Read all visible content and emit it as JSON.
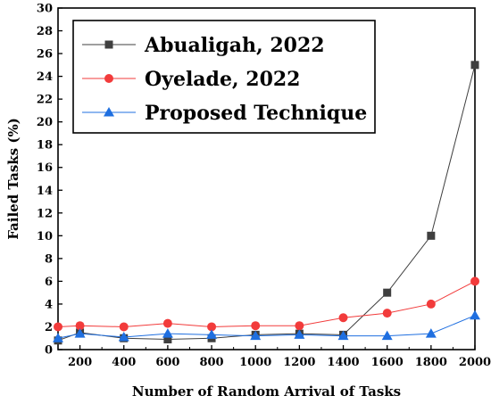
{
  "chart_data": {
    "type": "line",
    "xlabel": "Number of Random Arrival of Tasks",
    "ylabel": "Failed Tasks (%)",
    "xlim": [
      100,
      2000
    ],
    "ylim": [
      0,
      30
    ],
    "x": [
      100,
      200,
      400,
      600,
      800,
      1000,
      1200,
      1400,
      1600,
      1800,
      2000
    ],
    "x_ticks": [
      200,
      400,
      600,
      800,
      1000,
      1200,
      1400,
      1600,
      1800,
      2000
    ],
    "y_ticks": [
      0,
      2,
      4,
      6,
      8,
      10,
      12,
      14,
      16,
      18,
      20,
      22,
      24,
      26,
      28,
      30
    ],
    "grid": false,
    "legend_position": "top-left",
    "series": [
      {
        "name": "Abualigah, 2022",
        "color": "#3f3f3f",
        "marker": "square",
        "values": [
          0.8,
          1.5,
          1.0,
          0.9,
          1.0,
          1.3,
          1.4,
          1.3,
          5.0,
          10.0,
          25.0
        ]
      },
      {
        "name": "Oyelade, 2022",
        "color": "#f23b3b",
        "marker": "circle",
        "values": [
          2.0,
          2.1,
          2.0,
          2.3,
          2.0,
          2.1,
          2.1,
          2.8,
          3.2,
          4.0,
          6.0
        ]
      },
      {
        "name": "Proposed Technique",
        "color": "#1f6fe0",
        "marker": "triangle",
        "values": [
          1.0,
          1.4,
          1.1,
          1.4,
          1.3,
          1.2,
          1.3,
          1.2,
          1.2,
          1.4,
          3.0
        ]
      }
    ]
  }
}
